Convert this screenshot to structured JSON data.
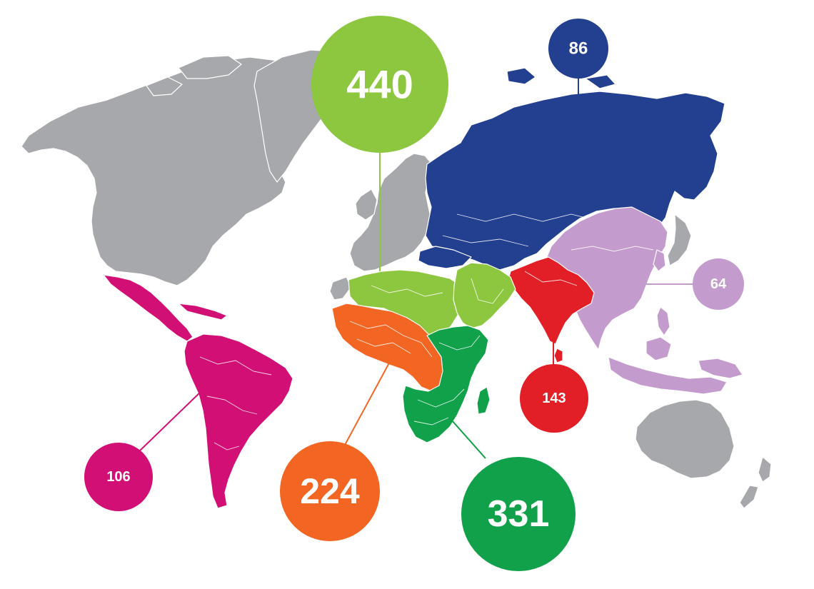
{
  "colors": {
    "background": "#ffffff",
    "no_data": "#a7a8ab",
    "border": "#ffffff",
    "label_text": "#ffffff"
  },
  "regions": [
    {
      "id": "north-africa-middle-east",
      "value": "440",
      "color": "#8dc63f",
      "marker_size": "large"
    },
    {
      "id": "europe-central-asia",
      "value": "86",
      "color": "#233f8f",
      "marker_size": "small"
    },
    {
      "id": "east-asia-pacific",
      "value": "64",
      "color": "#c39bcc",
      "marker_size": "small"
    },
    {
      "id": "south-asia",
      "value": "143",
      "color": "#e21f26",
      "marker_size": "small"
    },
    {
      "id": "latin-america-caribbean",
      "value": "106",
      "color": "#d20f75",
      "marker_size": "small"
    },
    {
      "id": "west-central-africa",
      "value": "224",
      "color": "#f26522",
      "marker_size": "large"
    },
    {
      "id": "eastern-southern-africa",
      "value": "331",
      "color": "#10a14a",
      "marker_size": "large"
    }
  ]
}
